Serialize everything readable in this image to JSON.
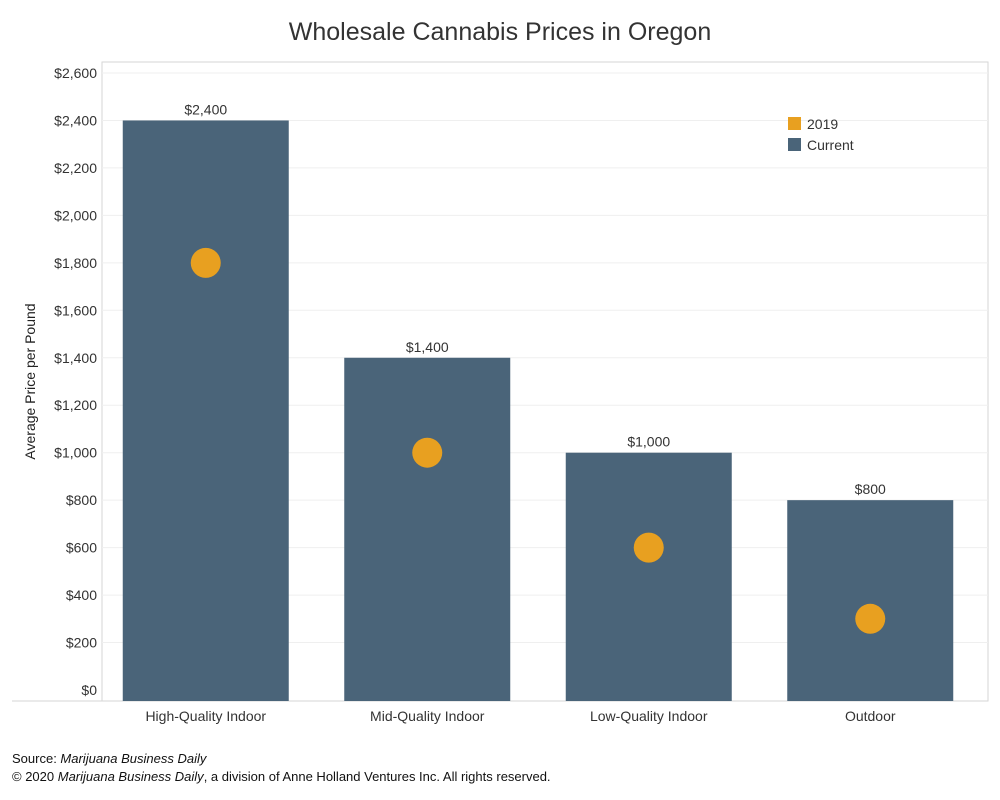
{
  "chart_data": {
    "type": "bar",
    "title": "Wholesale Cannabis Prices in Oregon",
    "xlabel": "",
    "ylabel": "Average Price per Pound",
    "ylim": [
      0,
      2600
    ],
    "y_ticks": [
      0,
      200,
      400,
      600,
      800,
      1000,
      1200,
      1400,
      1600,
      1800,
      2000,
      2200,
      2400,
      2600
    ],
    "y_tick_labels": [
      "$0",
      "$200",
      "$400",
      "$600",
      "$800",
      "$1,000",
      "$1,200",
      "$1,400",
      "$1,600",
      "$1,800",
      "$2,000",
      "$2,200",
      "$2,400",
      "$2,600"
    ],
    "categories": [
      "High-Quality Indoor",
      "Mid-Quality Indoor",
      "Low-Quality Indoor",
      "Outdoor"
    ],
    "series": [
      {
        "name": "Current",
        "mark": "bar",
        "color": "#4a6479",
        "values": [
          2400,
          1400,
          1000,
          800
        ],
        "labels": [
          "$2,400",
          "$1,400",
          "$1,000",
          "$800"
        ]
      },
      {
        "name": "2019",
        "mark": "circle",
        "color": "#e8a020",
        "values": [
          1800,
          1000,
          600,
          300
        ]
      }
    ],
    "legend": {
      "position": "top-right",
      "entries": [
        "2019",
        "Current"
      ]
    },
    "grid": true
  },
  "footer": {
    "source_prefix": "Source: ",
    "source_name": "Marijuana Business Daily",
    "copyright_prefix": "© 2020 ",
    "copyright_name": "Marijuana Business Daily",
    "copyright_suffix": ", a division of Anne Holland Ventures Inc. All rights reserved."
  }
}
